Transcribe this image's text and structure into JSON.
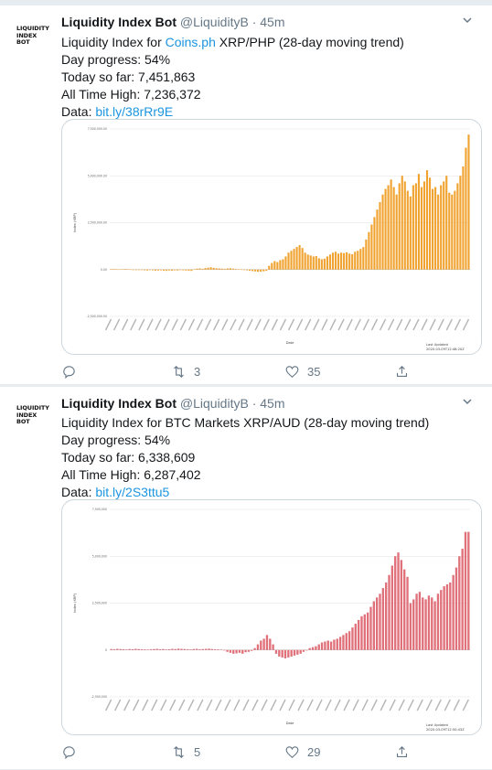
{
  "tweets": [
    {
      "avatar_text": "LIQUIDITY\nINDEX\nBOT",
      "name": "Liquidity Index Bot",
      "handle": "@LiquidityB",
      "dot": "·",
      "time": "45m",
      "line1_prefix": "Liquidity Index for ",
      "line1_link": "Coins.ph",
      "line1_suffix": " XRP/PHP (28-day moving trend)",
      "line2": "Day progress: 54%",
      "line3": "Today so far: 7,451,863",
      "line4": "All Time High: 7,236,372",
      "line5_prefix": "Data: ",
      "line5_link": "bit.ly/38rRr9E",
      "replies": "",
      "retweets": "3",
      "likes": "35",
      "chart": {
        "color": "#f0a330",
        "ylabel": "Index (XRP)",
        "xlabel": "Date",
        "ticks": [
          "7,500,000.00",
          "5,000,000.00",
          "2,500,000.00",
          "0.00",
          "-2,500,000.00"
        ],
        "updated_label": "Last Updated",
        "updated_value": "2020-03-09T12:48:20Z"
      }
    },
    {
      "avatar_text": "LIQUIDITY\nINDEX\nBOT",
      "name": "Liquidity Index Bot",
      "handle": "@LiquidityB",
      "dot": "·",
      "time": "45m",
      "line1_prefix": "Liquidity Index for BTC Markets XRP/AUD (28-day moving trend)",
      "line1_link": "",
      "line1_suffix": "",
      "line2": "Day progress: 54%",
      "line3": "Today so far: 6,338,609",
      "line4": "All Time High: 6,287,402",
      "line5_prefix": "Data: ",
      "line5_link": "bit.ly/2S3ttu5",
      "replies": "",
      "retweets": "5",
      "likes": "29",
      "chart": {
        "color": "#e0707a",
        "ylabel": "Index (XRP)",
        "xlabel": "Date",
        "ticks": [
          "7,500,000",
          "5,000,000",
          "2,500,000",
          "0",
          "-2,500,000"
        ],
        "updated_label": "Last Updated",
        "updated_value": "2020-03-09T12:50:43Z"
      }
    }
  ],
  "chart_data": [
    {
      "type": "bar",
      "ylim": [
        -2500000,
        7500000
      ],
      "values_millions": [
        0.02,
        0.03,
        0.02,
        0.01,
        0.02,
        0.03,
        0.02,
        0.01,
        0.0,
        -0.02,
        -0.03,
        -0.02,
        -0.04,
        -0.05,
        -0.03,
        -0.04,
        -0.06,
        -0.05,
        -0.04,
        -0.06,
        -0.07,
        -0.05,
        -0.06,
        -0.04,
        -0.05,
        -0.03,
        -0.04,
        -0.05,
        -0.06,
        -0.07,
        0.02,
        0.05,
        0.06,
        0.04,
        0.08,
        0.1,
        0.12,
        0.09,
        0.07,
        0.06,
        0.05,
        0.04,
        0.06,
        0.07,
        0.05,
        0.03,
        0.02,
        0.01,
        -0.02,
        -0.04,
        -0.06,
        -0.08,
        -0.1,
        -0.12,
        -0.11,
        -0.09,
        -0.07,
        0.2,
        0.35,
        0.45,
        0.4,
        0.5,
        0.55,
        0.7,
        0.9,
        1.0,
        1.1,
        1.2,
        1.3,
        1.15,
        0.9,
        0.8,
        0.75,
        0.7,
        0.72,
        0.6,
        0.55,
        0.58,
        0.7,
        0.8,
        0.9,
        0.95,
        0.85,
        0.9,
        0.88,
        0.92,
        0.85,
        0.82,
        0.95,
        1.0,
        1.1,
        1.2,
        1.6,
        2.0,
        2.4,
        2.8,
        3.2,
        3.6,
        4.0,
        4.3,
        4.5,
        4.8,
        4.4,
        4.0,
        4.6,
        5.0,
        4.7,
        4.2,
        3.9,
        4.5,
        4.6,
        5.1,
        4.4,
        4.7,
        5.3,
        4.9,
        4.3,
        4.4,
        4.0,
        4.5,
        4.7,
        5.0,
        4.1,
        4.0,
        4.2,
        4.6,
        5.0,
        5.5,
        6.5,
        7.2
      ],
      "x": "Date"
    },
    {
      "type": "bar",
      "ylim": [
        -2500000,
        7500000
      ],
      "values_millions": [
        0.05,
        0.04,
        0.06,
        0.05,
        0.04,
        0.03,
        0.05,
        0.04,
        0.06,
        0.05,
        0.04,
        0.03,
        0.02,
        0.04,
        0.05,
        0.06,
        0.04,
        0.05,
        0.03,
        0.04,
        0.06,
        0.05,
        0.07,
        0.06,
        0.05,
        0.04,
        0.03,
        0.05,
        0.06,
        0.04,
        0.05,
        0.06,
        0.07,
        0.05,
        0.04,
        0.03,
        0.02,
        0.0,
        -0.1,
        -0.15,
        -0.2,
        -0.18,
        -0.15,
        -0.2,
        -0.12,
        -0.1,
        -0.05,
        0.1,
        0.3,
        0.5,
        0.6,
        0.8,
        0.6,
        0.3,
        -0.2,
        -0.35,
        -0.4,
        -0.45,
        -0.4,
        -0.35,
        -0.3,
        -0.25,
        -0.2,
        -0.1,
        0.0,
        0.1,
        0.15,
        0.2,
        0.3,
        0.4,
        0.45,
        0.5,
        0.45,
        0.55,
        0.6,
        0.7,
        0.8,
        0.9,
        1.0,
        1.2,
        1.4,
        1.6,
        1.8,
        1.9,
        2.0,
        2.3,
        2.6,
        2.8,
        3.0,
        3.3,
        3.6,
        4.0,
        4.5,
        5.0,
        5.2,
        4.8,
        4.3,
        3.9,
        2.5,
        2.7,
        3.0,
        3.1,
        2.8,
        2.7,
        2.9,
        2.8,
        2.6,
        3.0,
        3.2,
        3.4,
        3.5,
        3.6,
        4.0,
        4.4,
        5.0,
        5.4,
        6.3,
        6.3
      ]
    }
  ]
}
